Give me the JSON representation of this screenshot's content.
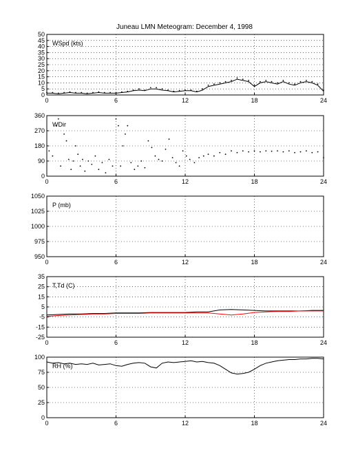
{
  "figure": {
    "title": "Juneau LMN Meteogram:  December  4, 1998"
  },
  "chart_data": [
    {
      "type": "line",
      "label": "WSpd (kts)",
      "xlim": [
        0,
        24
      ],
      "ylim": [
        0,
        50
      ],
      "xticks": [
        0,
        6,
        12,
        18,
        24
      ],
      "yticks": [
        0,
        5,
        10,
        15,
        20,
        25,
        30,
        35,
        40,
        45,
        50
      ],
      "grid": true,
      "series": [
        {
          "style": "dots",
          "color": "#000000",
          "x": [
            0,
            0.5,
            1,
            1.5,
            2,
            2.5,
            3,
            3.5,
            4,
            4.5,
            5,
            5.5,
            6,
            6.5,
            7,
            7.5,
            8,
            8.5,
            9,
            9.5,
            10,
            10.5,
            11,
            11.5,
            12,
            12.5,
            13,
            13.5,
            14,
            14.5,
            15,
            15.5,
            16,
            16.5,
            17,
            17.5,
            18,
            18.5,
            19,
            19.5,
            20,
            20.5,
            21,
            21.5,
            22,
            22.5,
            23,
            23.5,
            24
          ],
          "y": [
            2,
            2,
            1.5,
            2,
            2.5,
            2,
            2,
            1.5,
            2,
            2.5,
            2,
            2,
            2,
            2.5,
            3,
            4,
            5,
            4,
            6,
            6,
            5,
            4,
            3,
            3.5,
            4,
            4,
            3,
            5,
            8,
            9,
            10,
            11,
            12,
            14,
            13,
            12,
            8,
            11,
            12,
            11,
            10,
            12,
            10,
            9,
            11,
            12,
            11,
            9,
            4
          ]
        },
        {
          "style": "line",
          "color": "#000000",
          "x": [
            0,
            0.5,
            1,
            1.5,
            2,
            2.5,
            3,
            3.5,
            4,
            4.5,
            5,
            5.5,
            6,
            6.5,
            7,
            7.5,
            8,
            8.5,
            9,
            9.5,
            10,
            10.5,
            11,
            11.5,
            12,
            12.5,
            13,
            13.5,
            14,
            14.5,
            15,
            15.5,
            16,
            16.5,
            17,
            17.5,
            18,
            18.5,
            19,
            19.5,
            20,
            20.5,
            21,
            21.5,
            22,
            22.5,
            23,
            23.5,
            24
          ],
          "y": [
            1.5,
            1.5,
            1,
            1.5,
            2,
            1.5,
            1.5,
            1,
            1.5,
            2,
            1.5,
            1.5,
            1.5,
            2,
            2.5,
            3.5,
            4,
            3.5,
            5,
            5,
            4,
            3.5,
            2.5,
            3,
            3.5,
            3.5,
            2.5,
            4,
            7,
            8,
            9,
            10,
            11,
            13,
            12,
            11,
            7,
            10,
            11,
            10,
            9,
            11,
            9,
            8,
            10,
            11,
            10,
            8,
            3
          ]
        }
      ]
    },
    {
      "type": "scatter",
      "label": "WDir",
      "xlim": [
        0,
        24
      ],
      "ylim": [
        0,
        360
      ],
      "xticks": [
        0,
        6,
        12,
        18,
        24
      ],
      "yticks": [
        0,
        90,
        180,
        270,
        360
      ],
      "grid": true,
      "series": [
        {
          "style": "dots",
          "color": "#000000",
          "x": [
            0.2,
            0.5,
            0.8,
            1.0,
            1.2,
            1.5,
            1.7,
            1.9,
            2.1,
            2.3,
            2.5,
            2.7,
            2.9,
            3.1,
            3.3,
            3.6,
            3.9,
            4.2,
            4.5,
            4.8,
            5.1,
            5.4,
            5.7,
            6.0,
            6.2,
            6.4,
            6.6,
            6.8,
            7.0,
            7.3,
            7.6,
            7.9,
            8.2,
            8.5,
            8.8,
            9.1,
            9.4,
            9.7,
            10.0,
            10.3,
            10.6,
            10.9,
            11.2,
            11.5,
            11.8,
            12.1,
            12.4,
            12.8,
            13.2,
            13.6,
            14.0,
            14.5,
            15.0,
            15.5,
            16.0,
            16.5,
            17.0,
            17.5,
            18.0,
            18.5,
            19.0,
            19.5,
            20.0,
            20.5,
            21.0,
            21.5,
            22.0,
            22.5,
            23.0,
            23.5,
            24.0
          ],
          "y": [
            150,
            120,
            300,
            340,
            60,
            250,
            210,
            100,
            40,
            90,
            180,
            130,
            60,
            100,
            30,
            90,
            70,
            120,
            40,
            80,
            20,
            100,
            60,
            340,
            300,
            60,
            180,
            250,
            300,
            80,
            40,
            60,
            90,
            50,
            210,
            170,
            120,
            100,
            90,
            160,
            220,
            110,
            80,
            60,
            150,
            120,
            100,
            80,
            110,
            120,
            130,
            120,
            140,
            130,
            150,
            140,
            150,
            145,
            150,
            145,
            150,
            148,
            150,
            145,
            150,
            140,
            145,
            150,
            140,
            145,
            110
          ]
        }
      ]
    },
    {
      "type": "line",
      "label": "P (mb)",
      "xlim": [
        0,
        24
      ],
      "ylim": [
        950,
        1050
      ],
      "xticks": [
        0,
        6,
        12,
        18,
        24
      ],
      "yticks": [
        950,
        975,
        1000,
        1025,
        1050
      ],
      "grid": true,
      "series": []
    },
    {
      "type": "line",
      "label": "T,Td (C)",
      "xlim": [
        0,
        24
      ],
      "ylim": [
        -25,
        35
      ],
      "xticks": [
        0,
        6,
        12,
        18,
        24
      ],
      "yticks": [
        -25,
        -15,
        -5,
        5,
        15,
        25,
        35
      ],
      "grid": true,
      "series": [
        {
          "style": "line",
          "color": "#000000",
          "x": [
            0,
            1,
            2,
            3,
            4,
            5,
            6,
            7,
            8,
            9,
            10,
            11,
            12,
            13,
            14,
            15,
            16,
            17,
            18,
            19,
            20,
            21,
            22,
            23,
            24
          ],
          "y": [
            -3,
            -2.5,
            -2,
            -2,
            -1.5,
            -1.5,
            -1,
            -1,
            -1,
            -0.5,
            -0.5,
            -0.5,
            -0.5,
            0,
            0,
            2,
            2.5,
            2,
            1.5,
            1,
            1,
            1,
            1,
            1.5,
            1.5
          ]
        },
        {
          "style": "line",
          "color": "#ff0000",
          "x": [
            0,
            1,
            2,
            3,
            4,
            5,
            6,
            7,
            8,
            9,
            10,
            11,
            12,
            13,
            14,
            15,
            16,
            17,
            18,
            19,
            20,
            21,
            22,
            23,
            24
          ],
          "y": [
            -4.5,
            -3.5,
            -3,
            -2.5,
            -2,
            -2,
            -1.5,
            -1.5,
            -1.5,
            -1,
            -1,
            -1,
            -1,
            -1,
            -1,
            -2,
            -3,
            -2,
            -0.5,
            0,
            0.5,
            0.5,
            1,
            1,
            1
          ]
        }
      ]
    },
    {
      "type": "line",
      "label": "RH (%)",
      "xlim": [
        0,
        24
      ],
      "ylim": [
        0,
        100
      ],
      "xticks": [
        0,
        6,
        12,
        18,
        24
      ],
      "yticks": [
        0,
        25,
        50,
        75,
        100
      ],
      "grid": true,
      "series": [
        {
          "style": "line",
          "color": "#000000",
          "x": [
            0,
            0.5,
            1,
            1.5,
            2,
            2.5,
            3,
            3.5,
            4,
            4.5,
            5,
            5.5,
            6,
            6.5,
            7,
            7.5,
            8,
            8.5,
            9,
            9.5,
            10,
            10.5,
            11,
            11.5,
            12,
            12.5,
            13,
            13.5,
            14,
            14.5,
            15,
            15.5,
            16,
            16.5,
            17,
            17.5,
            18,
            18.5,
            19,
            19.5,
            20,
            20.5,
            21,
            21.5,
            22,
            22.5,
            23,
            23.5,
            24
          ],
          "y": [
            92,
            90,
            91,
            89,
            90,
            88,
            89,
            88,
            90,
            87,
            88,
            89,
            86,
            85,
            88,
            90,
            91,
            90,
            84,
            82,
            90,
            92,
            91,
            92,
            93,
            94,
            92,
            93,
            91,
            90,
            86,
            80,
            74,
            72,
            73,
            75,
            80,
            86,
            90,
            92,
            94,
            95,
            96,
            96,
            97,
            97,
            98,
            98,
            97
          ]
        }
      ]
    }
  ]
}
